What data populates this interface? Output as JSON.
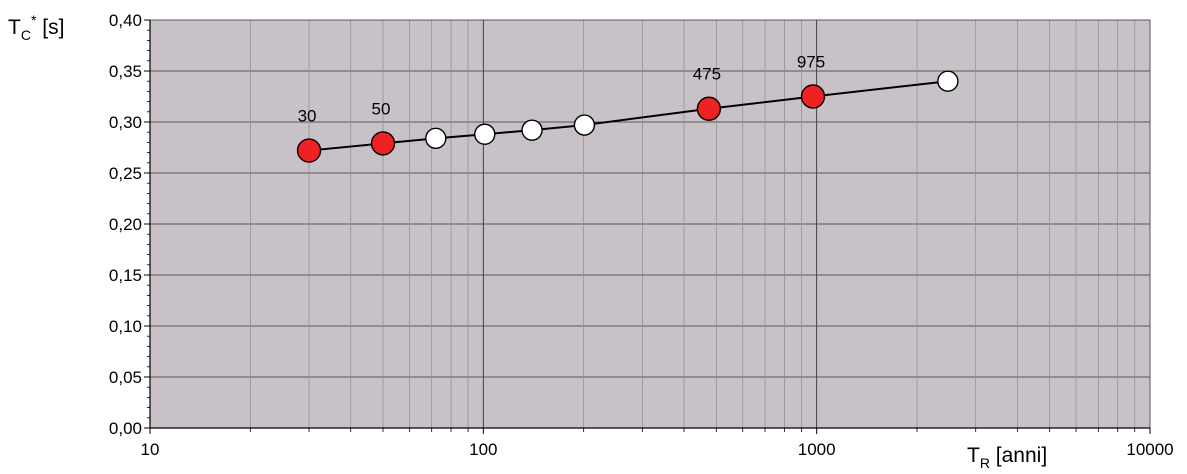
{
  "chart_data": {
    "type": "scatter",
    "x_scale": "log",
    "xlim": [
      10,
      10000
    ],
    "ylim": [
      0,
      0.4
    ],
    "grid": true,
    "colors": {
      "plot_background": "#c8c2c8",
      "grid_line": "#8c8a8c",
      "major_grid_line": "#333333",
      "line": "#000000",
      "highlight_marker": "#ee2222",
      "plain_marker": "#ffffff"
    },
    "x_axis": {
      "label_main": "T",
      "label_sub": "R",
      "label_rest": " [anni]",
      "ticks": [
        {
          "value": 10,
          "label": "10"
        },
        {
          "value": 100,
          "label": "100"
        },
        {
          "value": 1000,
          "label": "1000"
        },
        {
          "value": 10000,
          "label": "10000"
        }
      ]
    },
    "y_axis": {
      "label_main": "T",
      "label_sub": "C",
      "label_sup": "*",
      "label_rest": " [s]",
      "ticks": [
        {
          "value": 0.0,
          "label": "0,00"
        },
        {
          "value": 0.05,
          "label": "0,05"
        },
        {
          "value": 0.1,
          "label": "0,10"
        },
        {
          "value": 0.15,
          "label": "0,15"
        },
        {
          "value": 0.2,
          "label": "0,20"
        },
        {
          "value": 0.25,
          "label": "0,25"
        },
        {
          "value": 0.3,
          "label": "0,30"
        },
        {
          "value": 0.35,
          "label": "0,35"
        },
        {
          "value": 0.4,
          "label": "0,40"
        }
      ]
    },
    "series": [
      {
        "points": [
          {
            "x": 30,
            "y": 0.272,
            "highlight": true,
            "label": "30"
          },
          {
            "x": 50,
            "y": 0.279,
            "highlight": true,
            "label": "50"
          },
          {
            "x": 72,
            "y": 0.284,
            "highlight": false,
            "label": ""
          },
          {
            "x": 101,
            "y": 0.288,
            "highlight": false,
            "label": ""
          },
          {
            "x": 140,
            "y": 0.292,
            "highlight": false,
            "label": ""
          },
          {
            "x": 201,
            "y": 0.297,
            "highlight": false,
            "label": ""
          },
          {
            "x": 475,
            "y": 0.313,
            "highlight": true,
            "label": "475"
          },
          {
            "x": 975,
            "y": 0.325,
            "highlight": true,
            "label": "975"
          },
          {
            "x": 2475,
            "y": 0.34,
            "highlight": false,
            "label": ""
          }
        ]
      }
    ]
  }
}
